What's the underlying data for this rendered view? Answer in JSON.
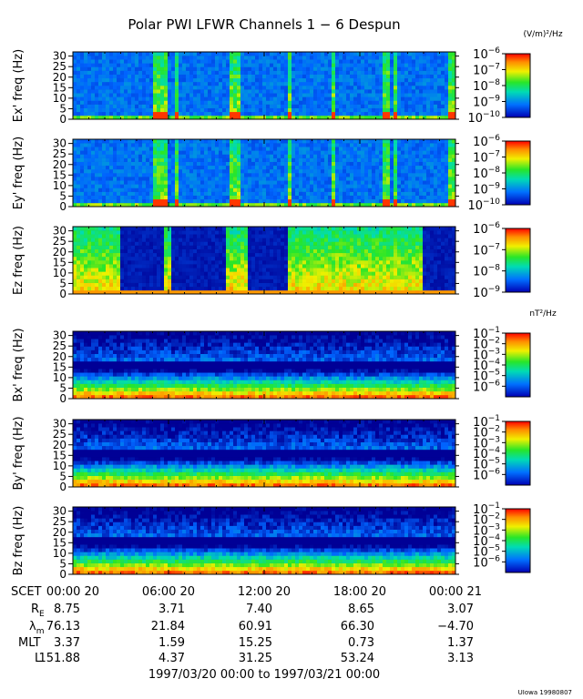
{
  "title": "Polar PWI LFWR Channels 1 − 6 Despun",
  "time_axis": {
    "label": "SCET",
    "ticks": [
      "00:00 20",
      "06:00 20",
      "12:00 20",
      "18:00 20",
      "00:00 21"
    ],
    "range_label": "1997/03/20 00:00 to 1997/03/21 00:00"
  },
  "ephemeris": {
    "rows": [
      {
        "label": "R",
        "sub": "E",
        "values": [
          "8.75",
          "3.71",
          "7.40",
          "8.65",
          "3.07"
        ]
      },
      {
        "label": "λ",
        "sub": "m",
        "values": [
          "76.13",
          "21.84",
          "60.91",
          "66.30",
          "−4.70"
        ]
      },
      {
        "label": "MLT",
        "sub": "",
        "values": [
          "3.37",
          "1.59",
          "15.25",
          "0.73",
          "1.37"
        ]
      },
      {
        "label": "L",
        "sub": "",
        "values": [
          "151.88",
          "4.37",
          "31.25",
          "53.24",
          "3.13"
        ]
      }
    ]
  },
  "credit": "UIowa 19980807",
  "chart_data": [
    {
      "type": "heatmap",
      "name": "Ex' freq (Hz)",
      "ylabel": "Ex' freq (Hz)",
      "yticks": [
        "0",
        "5",
        "10",
        "15",
        "20",
        "25",
        "30"
      ],
      "ylim": [
        0,
        32
      ],
      "xlim_hours": [
        0,
        24
      ],
      "colorbar": {
        "unit": "(V/m)²/Hz",
        "exponents": [
          -6,
          -7,
          -8,
          -9,
          -10
        ],
        "range_log10": [
          -10,
          -6
        ]
      },
      "profile": "e",
      "active_bursts": [
        [
          5.0,
          5.4
        ],
        [
          5.6,
          5.9
        ],
        [
          6.3,
          6.6
        ],
        [
          9.8,
          10.6
        ],
        [
          13.4,
          13.7
        ],
        [
          16.2,
          16.4
        ],
        [
          19.5,
          19.8
        ],
        [
          20.1,
          20.4
        ],
        [
          23.6,
          23.9
        ]
      ]
    },
    {
      "type": "heatmap",
      "name": "Ey' freq (Hz)",
      "ylabel": "Ey' freq (Hz)",
      "yticks": [
        "0",
        "5",
        "10",
        "15",
        "20",
        "25",
        "30"
      ],
      "ylim": [
        0,
        32
      ],
      "xlim_hours": [
        0,
        24
      ],
      "colorbar": {
        "unit": "",
        "exponents": [
          -6,
          -7,
          -8,
          -9,
          -10
        ],
        "range_log10": [
          -10,
          -6
        ]
      },
      "profile": "e",
      "active_bursts": [
        [
          5.0,
          5.4
        ],
        [
          5.6,
          5.9
        ],
        [
          6.3,
          6.6
        ],
        [
          9.8,
          10.6
        ],
        [
          13.4,
          13.7
        ],
        [
          16.2,
          16.4
        ],
        [
          19.5,
          19.8
        ],
        [
          20.1,
          20.4
        ],
        [
          23.6,
          23.9
        ]
      ]
    },
    {
      "type": "heatmap",
      "name": "Ez freq (Hz)",
      "ylabel": "Ez freq (Hz)",
      "yticks": [
        "0",
        "5",
        "10",
        "15",
        "20",
        "25",
        "30"
      ],
      "ylim": [
        0,
        32
      ],
      "xlim_hours": [
        0,
        24
      ],
      "colorbar": {
        "unit": "",
        "exponents": [
          -6,
          -7,
          -8,
          -9
        ],
        "range_log10": [
          -9,
          -6
        ]
      },
      "profile": "ez",
      "active_bursts": [
        [
          0.0,
          3.0
        ],
        [
          5.7,
          6.1
        ],
        [
          9.5,
          11.0
        ],
        [
          13.5,
          22.0
        ]
      ]
    },
    {
      "type": "heatmap",
      "name": "Bx' freq (Hz)",
      "ylabel": "Bx' freq (Hz)",
      "yticks": [
        "0",
        "5",
        "10",
        "15",
        "20",
        "25",
        "30"
      ],
      "ylim": [
        0,
        32
      ],
      "xlim_hours": [
        0,
        24
      ],
      "colorbar": {
        "unit": "nT²/Hz",
        "exponents": [
          -1,
          -2,
          -3,
          -4,
          -5,
          -6
        ],
        "range_log10": [
          -7,
          -1
        ]
      },
      "profile": "b",
      "active_bursts": []
    },
    {
      "type": "heatmap",
      "name": "By' freq (Hz)",
      "ylabel": "By' freq (Hz)",
      "yticks": [
        "0",
        "5",
        "10",
        "15",
        "20",
        "25",
        "30"
      ],
      "ylim": [
        0,
        32
      ],
      "xlim_hours": [
        0,
        24
      ],
      "colorbar": {
        "unit": "",
        "exponents": [
          -1,
          -2,
          -3,
          -4,
          -5,
          -6
        ],
        "range_log10": [
          -7,
          -1
        ]
      },
      "profile": "b",
      "active_bursts": []
    },
    {
      "type": "heatmap",
      "name": "Bz freq (Hz)",
      "ylabel": "Bz freq (Hz)",
      "yticks": [
        "0",
        "5",
        "10",
        "15",
        "20",
        "25",
        "30"
      ],
      "ylim": [
        0,
        32
      ],
      "xlim_hours": [
        0,
        24
      ],
      "colorbar": {
        "unit": "",
        "exponents": [
          -1,
          -2,
          -3,
          -4,
          -5,
          -6
        ],
        "range_log10": [
          -7,
          -1
        ]
      },
      "profile": "b",
      "active_bursts": []
    }
  ]
}
